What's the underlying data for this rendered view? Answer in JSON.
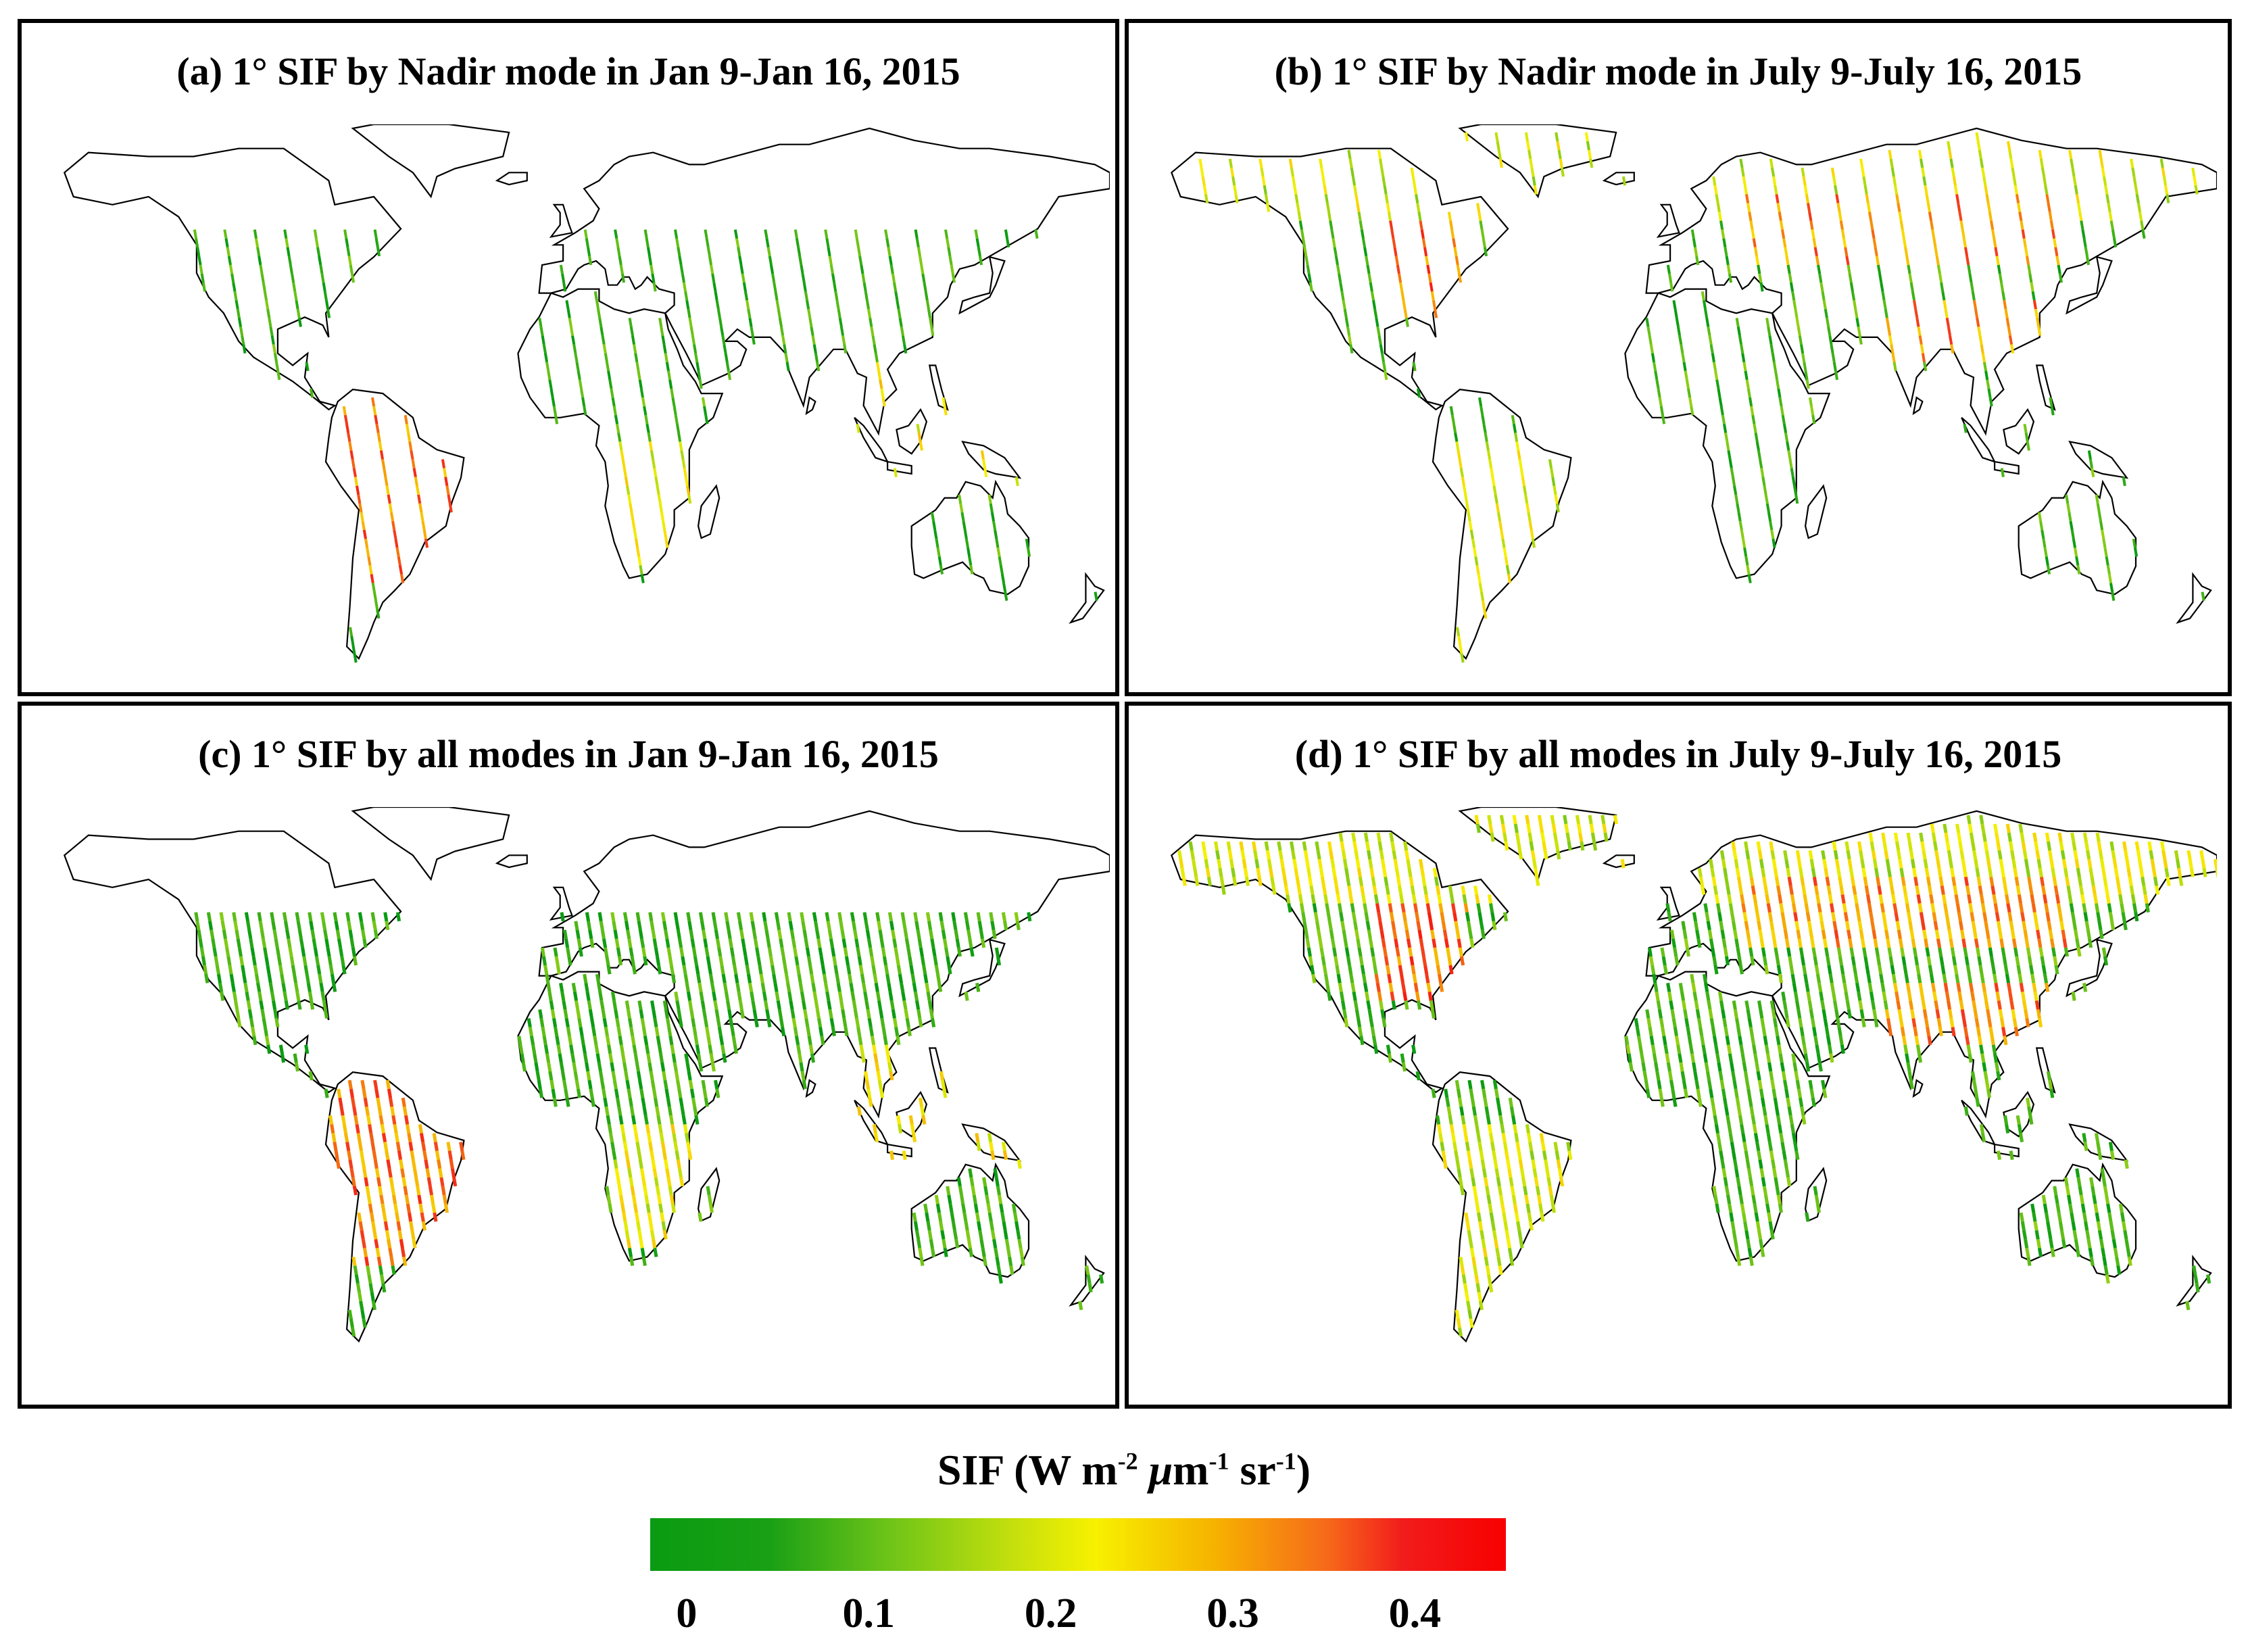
{
  "panels": [
    {
      "id": "a",
      "title": "(a) 1° SIF by Nadir mode in Jan 9-Jan 16, 2015",
      "season": "jan",
      "mode": "nadir"
    },
    {
      "id": "b",
      "title": "(b) 1° SIF by Nadir mode in July 9-July 16, 2015",
      "season": "jul",
      "mode": "nadir"
    },
    {
      "id": "c",
      "title": "(c) 1° SIF by all modes in Jan 9-Jan 16, 2015",
      "season": "jan",
      "mode": "all"
    },
    {
      "id": "d",
      "title": "(d) 1° SIF by all modes in July 9-July 16, 2015",
      "season": "jul",
      "mode": "all"
    }
  ],
  "colorbar": {
    "title_prefix": "SIF (W m",
    "exp1": "-2",
    "unit_mid": "m",
    "mu": "μ",
    "exp2": "-1",
    "unit_end": " sr",
    "exp3": "-1",
    "title_suffix": ")",
    "ticks": [
      "0",
      "0.1",
      "0.2",
      "0.3",
      "0.4"
    ],
    "tick_values": [
      0,
      0.1,
      0.2,
      0.3,
      0.4
    ],
    "range": [
      -0.02,
      0.45
    ],
    "colors": [
      "#0a9b12",
      "#6ec418",
      "#f7f100",
      "#f6b200",
      "#f21c1c"
    ]
  }
}
